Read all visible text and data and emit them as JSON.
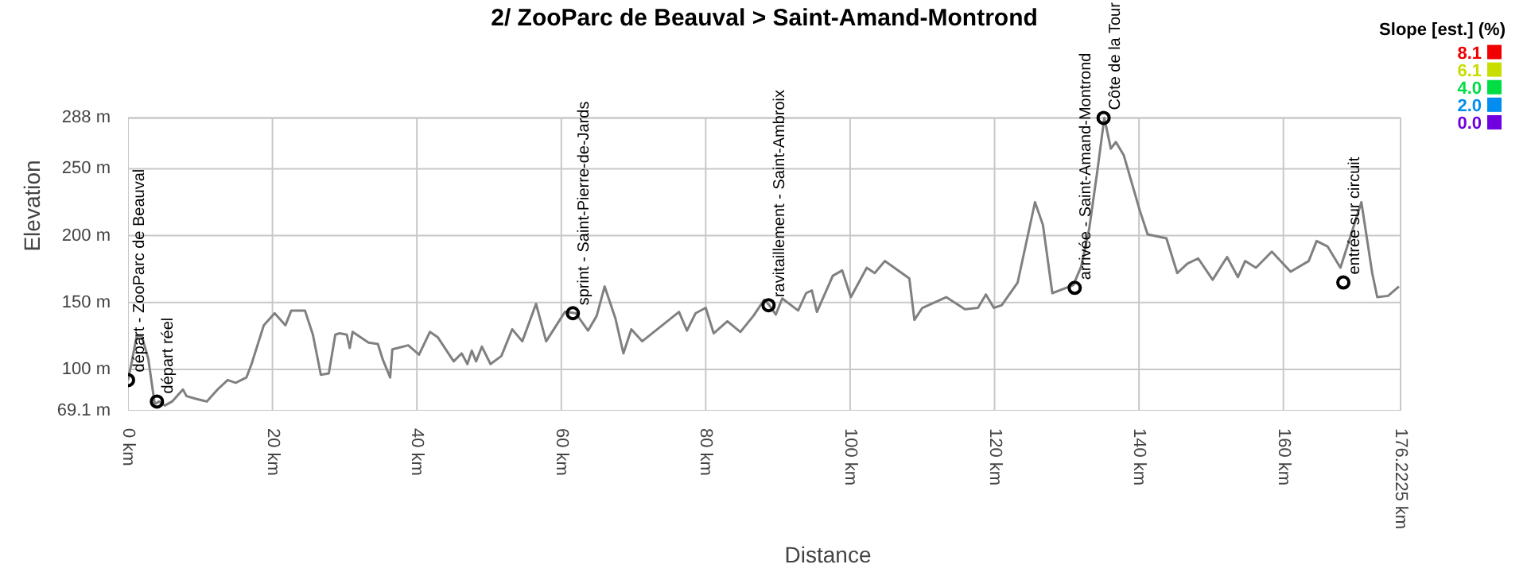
{
  "chart_data": {
    "type": "line",
    "title": "2/ ZooParc de Beauval > Saint-Amand-Montrond",
    "xlabel": "Distance",
    "ylabel": "Elevation",
    "clabel": "Slope [est.] (%)",
    "clim": [
      0,
      8.1
    ],
    "cticks": [
      {
        "value": 8.1,
        "label": "8.1"
      },
      {
        "value": 6.1,
        "label": "6.1"
      },
      {
        "value": 4,
        "label": "4.0"
      },
      {
        "value": 2,
        "label": "2.0"
      },
      {
        "value": 0,
        "label": "0.0"
      }
    ],
    "xlim": [
      0,
      176.2225
    ],
    "xticks": [
      {
        "value": 0,
        "label": "0 km"
      },
      {
        "value": 20,
        "label": "20 km"
      },
      {
        "value": 40,
        "label": "40 km"
      },
      {
        "value": 60,
        "label": "60 km"
      },
      {
        "value": 80,
        "label": "80 km"
      },
      {
        "value": 100,
        "label": "100 km"
      },
      {
        "value": 120,
        "label": "120 km"
      },
      {
        "value": 140,
        "label": "140 km"
      },
      {
        "value": 160,
        "label": "160 km"
      },
      {
        "value": 176.2225,
        "label": "176.2225 km"
      }
    ],
    "ylim": [
      69.1,
      288
    ],
    "yticks": [
      {
        "value": 69.1,
        "label": "69.1 m"
      },
      {
        "value": 100,
        "label": "100 m"
      },
      {
        "value": 150,
        "label": "150 m"
      },
      {
        "value": 200,
        "label": "200 m"
      },
      {
        "value": 250,
        "label": "250 m"
      },
      {
        "value": 288,
        "label": "288 m"
      }
    ],
    "grid": true,
    "marker": "none",
    "line_style": "solid",
    "series": [
      {
        "color": "#808080",
        "x": [
          0,
          0.6,
          1.2,
          1.9,
          2.8,
          3.7,
          4.3,
          5.1,
          6.1,
          7.6,
          8.1,
          9.4,
          10.9,
          12.4,
          13.8,
          14.9,
          16.4,
          17.1,
          18.8,
          20.3,
          21.8,
          22.6,
          24.5,
          25.6,
          26.7,
          27.8,
          28.7,
          29.3,
          30.3,
          30.7,
          31.1,
          33.3,
          34.6,
          35.3,
          36.3,
          36.6,
          38.8,
          40.3,
          41.8,
          42.9,
          45.1,
          46.2,
          47,
          47.6,
          48.2,
          49,
          50.2,
          51.7,
          53.2,
          54.6,
          56.5,
          57.9,
          60.5,
          62,
          63.7,
          64.9,
          66,
          67.5,
          68.6,
          69.7,
          71.2,
          76.3,
          77.4,
          78.6,
          80,
          81.1,
          83,
          84.8,
          86.6,
          88.1,
          88.8,
          89.7,
          90.6,
          92.8,
          93.9,
          94.7,
          95.4,
          97.6,
          98.9,
          100.1,
          102.3,
          103.4,
          104.8,
          108.2,
          108.9,
          110,
          113.3,
          115.9,
          117.7,
          118.8,
          119.9,
          121,
          123.2,
          125.6,
          126.7,
          128,
          130.9,
          132,
          133.1,
          134.2,
          135.2,
          136.1,
          136.8,
          137.9,
          140.1,
          141.2,
          143.8,
          145.3,
          146.7,
          148.2,
          150.2,
          152.2,
          153.7,
          154.7,
          156.2,
          158.4,
          161,
          163.5,
          164.6,
          166.1,
          167.9,
          170.8,
          172.3,
          173,
          174.5,
          176
        ],
        "values": [
          92,
          108,
          125,
          125,
          108,
          74,
          76,
          73,
          76,
          85,
          80,
          78,
          76,
          85,
          92,
          90,
          94,
          104,
          133,
          142,
          133,
          144,
          144,
          126,
          96,
          97,
          126,
          127,
          126,
          116,
          128,
          120,
          119,
          107,
          94,
          115,
          118,
          111,
          128,
          124,
          106,
          112,
          104,
          114,
          106,
          117,
          104,
          110,
          130,
          121,
          149,
          121,
          143,
          142,
          129,
          140,
          162,
          138,
          112,
          130,
          121,
          143,
          129,
          142,
          146,
          127,
          136,
          128,
          140,
          152,
          148,
          141,
          153,
          144,
          157,
          159,
          143,
          170,
          174,
          154,
          176,
          172,
          181,
          168,
          137,
          146,
          154,
          145,
          146,
          156,
          146,
          148,
          165,
          225,
          208,
          157,
          163,
          177,
          205,
          247,
          288,
          265,
          270,
          260,
          219,
          201,
          198,
          172,
          179,
          183,
          167,
          184,
          169,
          181,
          176,
          188,
          173,
          181,
          196,
          192,
          176,
          225,
          172,
          154,
          155,
          162
        ]
      }
    ],
    "annotations": [
      {
        "text": "départ - ZooParc de Beauval",
        "x": 0,
        "y": 92
      },
      {
        "text": "départ réel",
        "x": 4.0,
        "y": 76
      },
      {
        "text": "sprint - Saint-Pierre-de-Jards",
        "x": 61.6,
        "y": 142
      },
      {
        "text": "ravitaillement - Saint-Ambroix",
        "x": 88.7,
        "y": 148
      },
      {
        "text": "arrivée - Saint-Amand-Montrond",
        "x": 131.1,
        "y": 161
      },
      {
        "text": "Côte de la Tour",
        "x": 135.1,
        "y": 288
      },
      {
        "text": "entrée sur circuit",
        "x": 168.3,
        "y": 165
      }
    ]
  }
}
